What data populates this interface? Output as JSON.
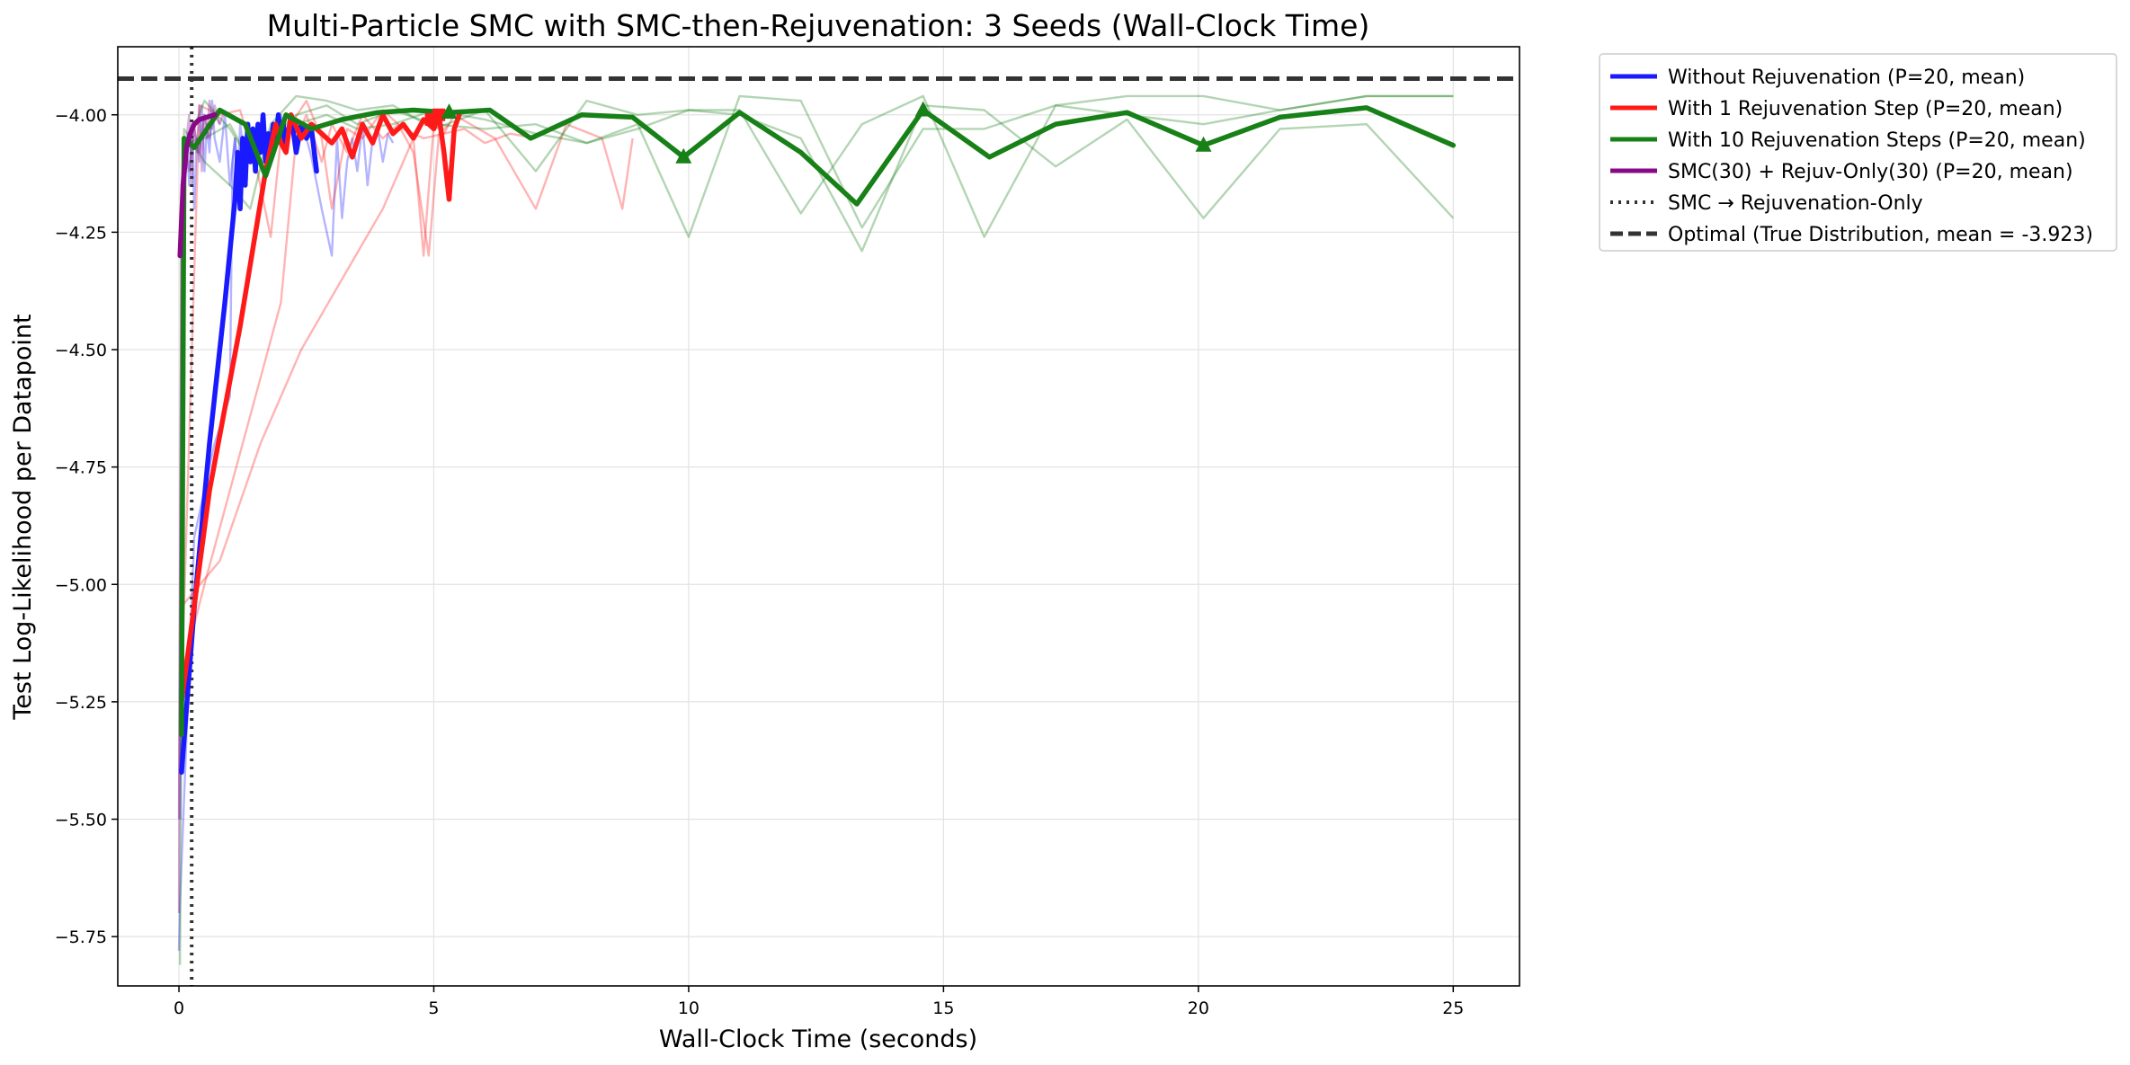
{
  "chart_data": {
    "type": "line",
    "title": "Multi-Particle SMC with SMC-then-Rejuvenation: 3 Seeds (Wall-Clock Time)",
    "xlabel": "Wall-Clock Time (seconds)",
    "ylabel": "Test Log-Likelihood per Datapoint",
    "xlim": [
      -1.2,
      26.3
    ],
    "ylim": [
      -5.855,
      -3.855
    ],
    "xticks": [
      0,
      5,
      10,
      15,
      20,
      25
    ],
    "xtick_labels": [
      "0",
      "5",
      "10",
      "15",
      "20",
      "25"
    ],
    "yticks": [
      -5.75,
      -5.5,
      -5.25,
      -5.0,
      -4.75,
      -4.5,
      -4.25,
      -4.0
    ],
    "ytick_labels": [
      "−5.75",
      "−5.50",
      "−5.25",
      "−5.00",
      "−4.75",
      "−4.50",
      "−4.25",
      "−4.00"
    ],
    "grid": true,
    "legend_position": "outside-upper-right",
    "reference_lines": [
      {
        "name": "SMC → Rejuvenation-Only",
        "orientation": "vertical",
        "value": 0.25,
        "style": "dotted",
        "color": "#333333"
      },
      {
        "name": "Optimal (True Distribution, mean = -3.923)",
        "orientation": "horizontal",
        "value": -3.923,
        "style": "dashed",
        "color": "#333333"
      }
    ],
    "series": [
      {
        "name": "Without Rejuvenation (P=20, mean)",
        "color": "#1a1aff",
        "x": [
          0.05,
          0.3,
          0.6,
          0.9,
          1.1,
          1.15,
          1.2,
          1.25,
          1.3,
          1.35,
          1.4,
          1.45,
          1.5,
          1.55,
          1.6,
          1.65,
          1.7,
          1.75,
          1.8,
          1.85,
          1.9,
          1.95,
          2.0,
          2.05,
          2.1,
          2.2,
          2.3,
          2.4,
          2.5,
          2.6,
          2.7
        ],
        "y": [
          -5.4,
          -5.05,
          -4.7,
          -4.4,
          -4.18,
          -4.08,
          -4.2,
          -4.05,
          -4.15,
          -4.02,
          -4.1,
          -4.03,
          -4.12,
          -4.02,
          -4.08,
          -4.0,
          -4.1,
          -4.04,
          -4.09,
          -4.02,
          -4.06,
          -4.0,
          -4.05,
          -4.02,
          -4.07,
          -4.0,
          -4.08,
          -4.02,
          -4.05,
          -4.03,
          -4.12
        ]
      },
      {
        "name": "With 1 Rejuvenation Step (P=20, mean)",
        "color": "#ff1a1a",
        "x": [
          0.05,
          0.6,
          1.2,
          1.7,
          1.9,
          2.0,
          2.1,
          2.2,
          2.4,
          2.6,
          2.8,
          3.0,
          3.2,
          3.4,
          3.6,
          3.8,
          4.0,
          4.2,
          4.4,
          4.6,
          4.8,
          5.0,
          5.1,
          5.2,
          5.3,
          5.4,
          5.5
        ],
        "y": [
          -5.25,
          -4.8,
          -4.45,
          -4.12,
          -4.02,
          -4.06,
          -4.08,
          -4.0,
          -4.05,
          -4.02,
          -4.04,
          -4.06,
          -4.03,
          -4.09,
          -4.02,
          -4.06,
          -4.0,
          -4.04,
          -4.02,
          -4.05,
          -4.01,
          -4.03,
          -4.0,
          -4.08,
          -4.18,
          -4.03,
          -4.0
        ]
      },
      {
        "name": "With 10 Rejuvenation Steps (P=20, mean)",
        "color": "#178017",
        "x": [
          0.05,
          0.1,
          0.3,
          0.8,
          1.3,
          1.7,
          2.1,
          2.6,
          3.2,
          3.9,
          4.6,
          5.3,
          6.1,
          6.9,
          7.9,
          8.9,
          9.9,
          11.0,
          12.2,
          13.3,
          14.6,
          15.9,
          17.2,
          18.6,
          20.1,
          21.6,
          23.3,
          25.0
        ],
        "y": [
          -5.32,
          -4.05,
          -4.07,
          -3.99,
          -4.02,
          -4.13,
          -4.0,
          -4.03,
          -4.01,
          -3.995,
          -3.99,
          -3.995,
          -3.99,
          -4.05,
          -4.0,
          -4.005,
          -4.09,
          -3.995,
          -4.08,
          -4.19,
          -3.99,
          -4.09,
          -4.02,
          -3.995,
          -4.065,
          -4.005,
          -3.985,
          -4.065
        ]
      },
      {
        "name": "SMC(30) + Rejuv-Only(30) (P=20, mean)",
        "color": "#880888",
        "x": [
          0.02,
          0.08,
          0.15,
          0.22,
          0.3,
          0.4,
          0.55,
          0.7
        ],
        "y": [
          -4.3,
          -4.15,
          -4.07,
          -4.04,
          -4.02,
          -4.01,
          -4.005,
          -4.0
        ]
      }
    ],
    "seed_traces": [
      {
        "color": "#1a1aff",
        "x": [
          0.0,
          0.02,
          0.3,
          0.7,
          1.0,
          1.05,
          1.1,
          1.15,
          1.2,
          1.3,
          1.4,
          1.5,
          1.6,
          1.7,
          1.8,
          1.9,
          2.0,
          2.1,
          2.2,
          2.3,
          2.4,
          2.5,
          2.6,
          2.8,
          3.0,
          3.1,
          3.2,
          3.3,
          3.4,
          3.5,
          3.6,
          3.7,
          3.8,
          3.9,
          4.0,
          4.1,
          4.2
        ],
        "y": [
          -5.78,
          -5.68,
          -4.9,
          -4.7,
          -4.6,
          -4.1,
          -4.05,
          -4.15,
          -4.02,
          -4.1,
          -4.05,
          -4.1,
          -4.02,
          -4.08,
          -4.03,
          -4.07,
          -4.0,
          -4.06,
          -4.02,
          -4.08,
          -4.03,
          -4.05,
          -4.09,
          -4.2,
          -4.3,
          -4.05,
          -4.22,
          -4.1,
          -4.05,
          -4.12,
          -4.02,
          -4.15,
          -4.05,
          -4.03,
          -4.1,
          -4.04,
          -4.06
        ]
      },
      {
        "color": "#1a1aff",
        "x": [
          0.03,
          0.1,
          0.15,
          0.2,
          0.25,
          0.3,
          0.35,
          0.4,
          0.45,
          0.5,
          0.55,
          0.6,
          0.65,
          0.7,
          0.8,
          0.9,
          1.0,
          1.1,
          1.2,
          1.3,
          1.4,
          1.5
        ],
        "y": [
          -5.5,
          -4.2,
          -4.05,
          -4.15,
          -4.02,
          -4.2,
          -4.05,
          -4.1,
          -3.98,
          -4.12,
          -4.02,
          -4.08,
          -3.97,
          -4.05,
          -4.1,
          -4.0,
          -4.15,
          -4.05,
          -4.2,
          -4.05,
          -4.1,
          -4.03
        ]
      },
      {
        "color": "#ff1a1a",
        "x": [
          0.03,
          0.5,
          1.0,
          1.5,
          2.0,
          2.3,
          2.5,
          2.8,
          3.0,
          3.3,
          3.6,
          4.0,
          4.3,
          4.6,
          4.9,
          5.1,
          5.3
        ],
        "y": [
          -5.2,
          -5.0,
          -4.8,
          -4.6,
          -4.4,
          -4.05,
          -4.0,
          -4.1,
          -4.02,
          -4.08,
          -4.0,
          -4.05,
          -4.02,
          -4.08,
          -4.3,
          -4.04,
          -4.02
        ]
      },
      {
        "color": "#ff1a1a",
        "x": [
          0.03,
          0.8,
          1.6,
          2.4,
          3.2,
          4.0,
          4.6,
          4.8,
          5.0,
          5.2,
          5.4,
          6.2,
          7.0,
          7.6,
          8.3,
          8.7,
          8.9
        ],
        "y": [
          -5.05,
          -4.95,
          -4.7,
          -4.5,
          -4.35,
          -4.2,
          -4.05,
          -4.3,
          -4.02,
          -4.04,
          -4.0,
          -4.05,
          -4.2,
          -4.02,
          -4.05,
          -4.2,
          -4.05
        ]
      },
      {
        "color": "#ff1a1a",
        "x": [
          0.03,
          0.4,
          0.8,
          1.2,
          1.5,
          1.8,
          2.0,
          2.2,
          2.5,
          2.8,
          3.0,
          3.3,
          3.6,
          4.0,
          4.4,
          4.8,
          5.2,
          5.6,
          6.0,
          6.5,
          7.0
        ],
        "y": [
          -5.3,
          -3.98,
          -4.0,
          -3.99,
          -4.1,
          -4.26,
          -4.05,
          -4.02,
          -3.97,
          -4.05,
          -4.2,
          -4.03,
          -4.05,
          -3.99,
          -4.03,
          -4.05,
          -4.04,
          -4.03,
          -4.06,
          -4.04,
          -4.05
        ]
      },
      {
        "color": "#178017",
        "x": [
          0.02,
          0.1,
          0.5,
          1.0,
          1.4,
          1.8,
          2.3,
          2.9,
          3.5,
          4.2,
          5.0,
          6.0,
          7.0,
          8.0,
          9.0,
          10.0,
          11.0,
          12.2,
          13.4,
          14.6,
          15.8,
          17.2,
          18.6,
          20.1,
          21.6,
          23.3,
          25.0
        ],
        "y": [
          -5.81,
          -4.06,
          -4.05,
          -4.02,
          -4.1,
          -4.05,
          -4.02,
          -4.0,
          -4.03,
          -4.02,
          -3.99,
          -4.01,
          -4.04,
          -4.06,
          -4.02,
          -4.26,
          -3.96,
          -3.97,
          -4.24,
          -4.03,
          -4.03,
          -3.98,
          -4.0,
          -4.02,
          -3.99,
          -3.96,
          -3.96
        ]
      },
      {
        "color": "#178017",
        "x": [
          0.02,
          0.1,
          0.5,
          1.0,
          1.4,
          1.8,
          2.3,
          2.9,
          3.5,
          4.2,
          5.0,
          6.0,
          7.0,
          8.0,
          9.0,
          10.0,
          11.0,
          12.2,
          13.4,
          14.6,
          15.8,
          17.2,
          18.6,
          20.1,
          21.6,
          23.3,
          25.0
        ],
        "y": [
          -5.3,
          -4.03,
          -4.1,
          -4.15,
          -4.2,
          -4.02,
          -3.96,
          -3.97,
          -3.99,
          -3.98,
          -4.03,
          -3.99,
          -4.12,
          -3.97,
          -4.0,
          -3.99,
          -3.99,
          -4.21,
          -4.02,
          -3.96,
          -4.26,
          -3.98,
          -3.96,
          -3.96,
          -3.99,
          -3.96,
          -3.96
        ]
      },
      {
        "color": "#178017",
        "x": [
          0.02,
          0.1,
          0.5,
          1.0,
          1.4,
          1.8,
          2.3,
          2.9,
          3.5,
          4.2,
          5.0,
          6.0,
          7.0,
          8.0,
          9.0,
          10.0,
          11.0,
          12.2,
          13.4,
          14.6,
          15.8,
          17.2,
          18.6,
          20.1,
          21.6,
          23.3,
          25.0
        ],
        "y": [
          -5.4,
          -4.08,
          -3.97,
          -4.03,
          -4.1,
          -4.05,
          -4.0,
          -3.98,
          -4.02,
          -3.99,
          -4.02,
          -4.03,
          -4.02,
          -4.06,
          -4.03,
          -3.99,
          -4.0,
          -4.05,
          -4.29,
          -3.98,
          -3.99,
          -4.11,
          -4.01,
          -4.22,
          -4.03,
          -4.02,
          -4.22
        ]
      },
      {
        "color": "#880888",
        "x": [
          0.0,
          0.05,
          0.1,
          0.15,
          0.2,
          0.25,
          0.3,
          0.35,
          0.4,
          0.45,
          0.5,
          0.55,
          0.6,
          0.65,
          0.7,
          0.8,
          0.9
        ],
        "y": [
          -5.5,
          -4.2,
          -4.1,
          -4.05,
          -4.0,
          -4.15,
          -4.02,
          -4.08,
          -3.98,
          -4.12,
          -4.0,
          -4.05,
          -3.97,
          -4.03,
          -4.0,
          -4.02,
          -3.99
        ]
      },
      {
        "color": "#880888",
        "x": [
          0.0,
          0.05,
          0.1,
          0.2,
          0.3,
          0.4,
          0.5,
          0.6,
          0.7,
          0.8
        ],
        "y": [
          -5.7,
          -4.15,
          -4.05,
          -4.12,
          -4.03,
          -4.08,
          -4.0,
          -4.05,
          -3.98,
          -4.02
        ]
      }
    ],
    "markers": [
      {
        "color": "#ff1a1a",
        "shape": "square",
        "points": [
          [
            4.95,
            -4.01
          ],
          [
            5.1,
            -4.0
          ]
        ]
      },
      {
        "color": "#178017",
        "shape": "triangle",
        "points": [
          [
            5.3,
            -3.995
          ],
          [
            9.9,
            -4.09
          ],
          [
            14.6,
            -3.99
          ],
          [
            20.1,
            -4.065
          ]
        ]
      }
    ]
  }
}
